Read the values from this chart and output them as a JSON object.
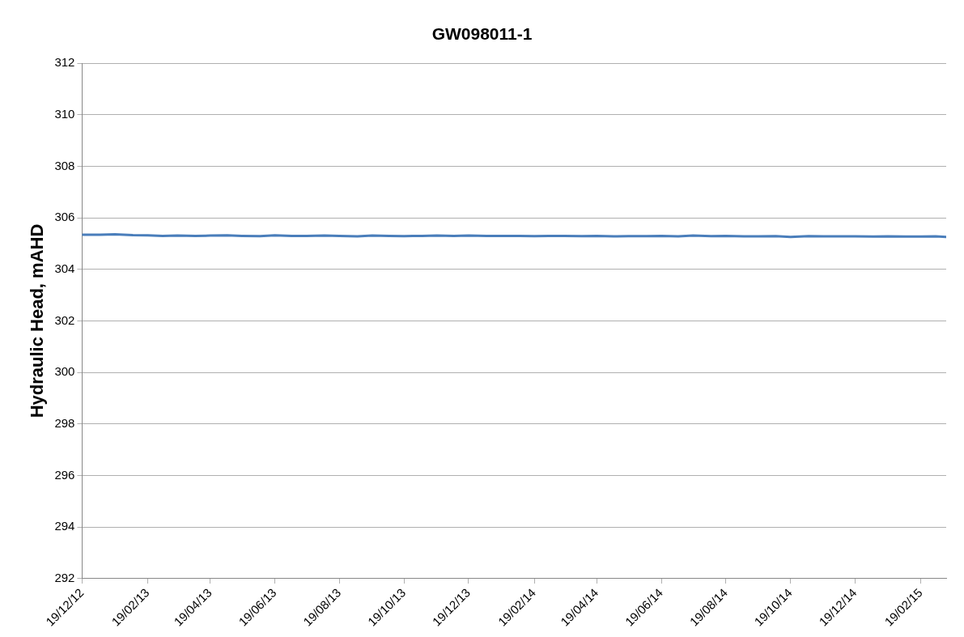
{
  "chart_data": {
    "type": "line",
    "title": "GW098011-1",
    "ylabel": "Hydraulic Head, mAHD",
    "xlim": [
      "2012-12-19",
      "2015-03-15"
    ],
    "ylim": [
      292,
      312
    ],
    "yticks": [
      292,
      294,
      296,
      298,
      300,
      302,
      304,
      306,
      308,
      310,
      312
    ],
    "xticks": [
      {
        "value": "2012-12-19",
        "label": "19/12/12"
      },
      {
        "value": "2013-02-19",
        "label": "19/02/13"
      },
      {
        "value": "2013-04-19",
        "label": "19/04/13"
      },
      {
        "value": "2013-06-19",
        "label": "19/06/13"
      },
      {
        "value": "2013-08-19",
        "label": "19/08/13"
      },
      {
        "value": "2013-10-19",
        "label": "19/10/13"
      },
      {
        "value": "2013-12-19",
        "label": "19/12/13"
      },
      {
        "value": "2014-02-19",
        "label": "19/02/14"
      },
      {
        "value": "2014-04-19",
        "label": "19/04/14"
      },
      {
        "value": "2014-06-19",
        "label": "19/06/14"
      },
      {
        "value": "2014-08-19",
        "label": "19/08/14"
      },
      {
        "value": "2014-10-19",
        "label": "19/10/14"
      },
      {
        "value": "2014-12-19",
        "label": "19/12/14"
      },
      {
        "value": "2015-02-19",
        "label": "19/02/15"
      }
    ],
    "grid": "y",
    "legend": false,
    "marker": "none",
    "line_style": "solid",
    "series": [
      {
        "color": "#4a7ebb",
        "x": [
          "2012-12-19",
          "2013-01-05",
          "2013-01-19",
          "2013-02-05",
          "2013-02-19",
          "2013-03-05",
          "2013-03-19",
          "2013-04-05",
          "2013-04-19",
          "2013-05-05",
          "2013-05-19",
          "2013-06-05",
          "2013-06-19",
          "2013-07-05",
          "2013-07-19",
          "2013-08-05",
          "2013-08-19",
          "2013-09-05",
          "2013-09-19",
          "2013-10-05",
          "2013-10-19",
          "2013-11-05",
          "2013-11-19",
          "2013-12-05",
          "2013-12-19",
          "2014-01-05",
          "2014-01-19",
          "2014-02-05",
          "2014-02-19",
          "2014-03-05",
          "2014-03-19",
          "2014-04-05",
          "2014-04-19",
          "2014-05-05",
          "2014-05-19",
          "2014-06-05",
          "2014-06-19",
          "2014-07-05",
          "2014-07-19",
          "2014-08-05",
          "2014-08-19",
          "2014-09-05",
          "2014-09-19",
          "2014-10-05",
          "2014-10-19",
          "2014-11-05",
          "2014-11-19",
          "2014-12-05",
          "2014-12-19",
          "2015-01-05",
          "2015-01-19",
          "2015-02-05",
          "2015-02-19",
          "2015-03-05",
          "2015-03-15"
        ],
        "values": [
          305.34,
          305.34,
          305.36,
          305.33,
          305.32,
          305.3,
          305.31,
          305.3,
          305.31,
          305.32,
          305.3,
          305.29,
          305.32,
          305.3,
          305.3,
          305.31,
          305.3,
          305.28,
          305.31,
          305.3,
          305.29,
          305.3,
          305.31,
          305.3,
          305.31,
          305.3,
          305.3,
          305.3,
          305.29,
          305.3,
          305.3,
          305.29,
          305.3,
          305.28,
          305.29,
          305.29,
          305.3,
          305.28,
          305.31,
          305.29,
          305.3,
          305.28,
          305.28,
          305.29,
          305.26,
          305.29,
          305.28,
          305.28,
          305.28,
          305.27,
          305.28,
          305.27,
          305.27,
          305.28,
          305.26
        ]
      }
    ]
  }
}
